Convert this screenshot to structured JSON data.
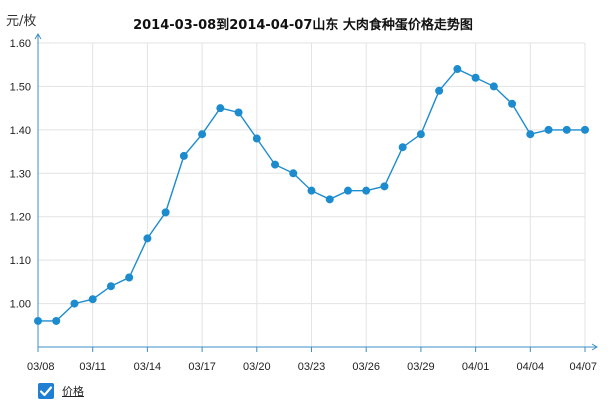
{
  "chart_data": {
    "type": "line",
    "title": "2014-03-08到2014-04-07山东  大肉食种蛋价格走势图",
    "ylabel": "元/枚",
    "ylim": [
      0.9,
      1.6
    ],
    "yticks": [
      "1.00",
      "1.10",
      "1.20",
      "1.30",
      "1.40",
      "1.50",
      "1.60"
    ],
    "xticks": [
      "03/08",
      "03/11",
      "03/14",
      "03/17",
      "03/20",
      "03/23",
      "03/26",
      "03/29",
      "04/01",
      "04/04",
      "04/07"
    ],
    "x": [
      "03/08",
      "03/09",
      "03/10",
      "03/11",
      "03/12",
      "03/13",
      "03/14",
      "03/15",
      "03/16",
      "03/17",
      "03/18",
      "03/19",
      "03/20",
      "03/21",
      "03/22",
      "03/23",
      "03/24",
      "03/25",
      "03/26",
      "03/27",
      "03/28",
      "03/29",
      "03/30",
      "03/31",
      "04/01",
      "04/02",
      "04/03",
      "04/04",
      "04/05",
      "04/06",
      "04/07"
    ],
    "series": [
      {
        "name": "价格",
        "color": "#1d8ccf",
        "values": [
          0.96,
          0.96,
          1.0,
          1.01,
          1.04,
          1.06,
          1.15,
          1.21,
          1.34,
          1.39,
          1.45,
          1.44,
          1.38,
          1.32,
          1.3,
          1.26,
          1.24,
          1.26,
          1.26,
          1.27,
          1.36,
          1.39,
          1.49,
          1.54,
          1.52,
          1.5,
          1.46,
          1.39,
          1.4,
          1.4,
          1.4
        ]
      }
    ],
    "grid": true,
    "legend": "bottom-left"
  },
  "legend": {
    "checked": true,
    "label": "价格"
  }
}
